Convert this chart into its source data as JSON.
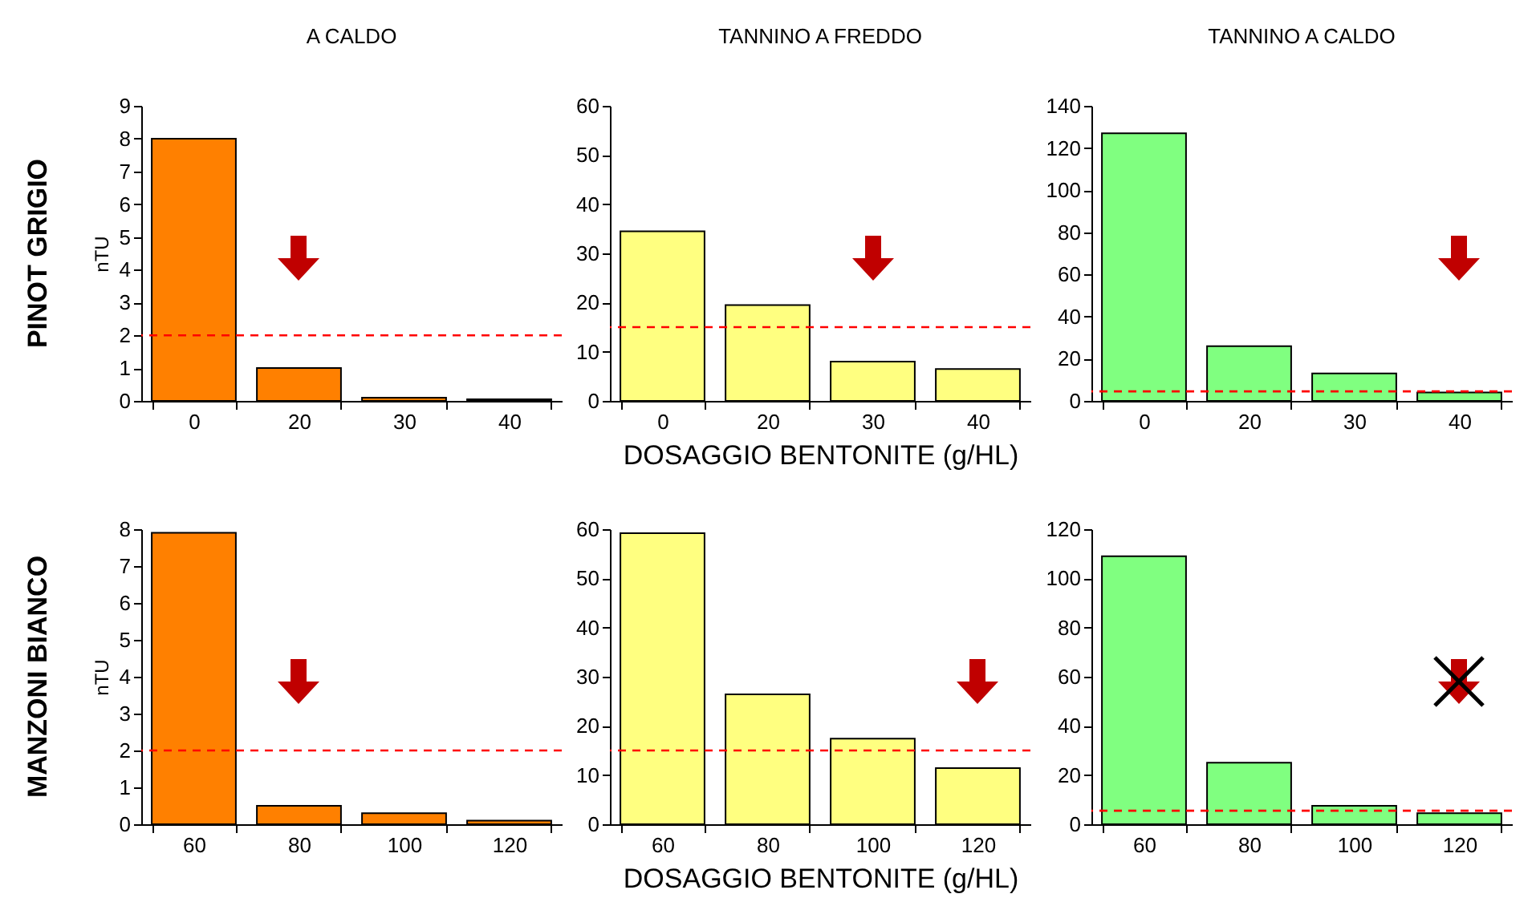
{
  "chart_data": [
    {
      "type": "bar",
      "title": "A CALDO",
      "ylabel": "nTU",
      "annotations": [
        "PINOT GRIGIO"
      ],
      "categories": [
        "0",
        "20",
        "30",
        "40"
      ],
      "values": [
        8,
        1,
        0.1,
        0.05
      ],
      "color": "#ff8000",
      "ylim": [
        0,
        9
      ],
      "yticks": [
        0,
        1,
        2,
        3,
        4,
        5,
        6,
        7,
        8,
        9
      ],
      "ref_lines": [
        {
          "axis": "y",
          "value": 2,
          "color": "#ff0000",
          "line_style": "dashed"
        }
      ]
    },
    {
      "type": "bar",
      "title": "TANNINO A FREDDO",
      "xlabel": "DOSAGGIO BENTONITE (g/HL)",
      "categories": [
        "0",
        "20",
        "30",
        "40"
      ],
      "values": [
        34.5,
        19.5,
        8,
        6.5
      ],
      "color": "#ffff80",
      "ylim": [
        0,
        60
      ],
      "yticks": [
        0,
        10,
        20,
        30,
        40,
        50,
        60
      ],
      "ref_lines": [
        {
          "axis": "y",
          "value": 15,
          "color": "#ff0000",
          "line_style": "dashed"
        }
      ]
    },
    {
      "type": "bar",
      "title": "TANNINO A CALDO",
      "categories": [
        "0",
        "20",
        "30",
        "40"
      ],
      "values": [
        127,
        26,
        13,
        4
      ],
      "color": "#80ff80",
      "ylim": [
        0,
        140
      ],
      "yticks": [
        0,
        20,
        40,
        60,
        80,
        100,
        120,
        140
      ],
      "ref_lines": [
        {
          "axis": "y",
          "value": 4.5,
          "color": "#ff0000",
          "line_style": "dashed"
        }
      ]
    },
    {
      "type": "bar",
      "ylabel": "nTU",
      "annotations": [
        "MANZONI BIANCO"
      ],
      "categories": [
        "60",
        "80",
        "100",
        "120"
      ],
      "values": [
        7.9,
        0.5,
        0.3,
        0.1
      ],
      "color": "#ff8000",
      "ylim": [
        0,
        8
      ],
      "yticks": [
        0,
        1,
        2,
        3,
        4,
        5,
        6,
        7,
        8
      ],
      "ref_lines": [
        {
          "axis": "y",
          "value": 2,
          "color": "#ff0000",
          "line_style": "dashed"
        }
      ]
    },
    {
      "type": "bar",
      "xlabel": "DOSAGGIO BENTONITE (g/HL)",
      "categories": [
        "60",
        "80",
        "100",
        "120"
      ],
      "values": [
        59.2,
        26.4,
        17.4,
        11.4
      ],
      "color": "#ffff80",
      "ylim": [
        0,
        60
      ],
      "yticks": [
        0,
        10,
        20,
        30,
        40,
        50,
        60
      ],
      "ref_lines": [
        {
          "axis": "y",
          "value": 15,
          "color": "#ff0000",
          "line_style": "dashed"
        }
      ]
    },
    {
      "type": "bar",
      "categories": [
        "60",
        "80",
        "100",
        "120"
      ],
      "values": [
        109,
        25,
        7.5,
        4.5
      ],
      "color": "#80ff80",
      "ylim": [
        0,
        120
      ],
      "yticks": [
        0,
        20,
        40,
        60,
        80,
        100,
        120
      ],
      "ref_lines": [
        {
          "axis": "y",
          "value": 5.5,
          "color": "#ff0000",
          "line_style": "dashed"
        }
      ]
    }
  ]
}
